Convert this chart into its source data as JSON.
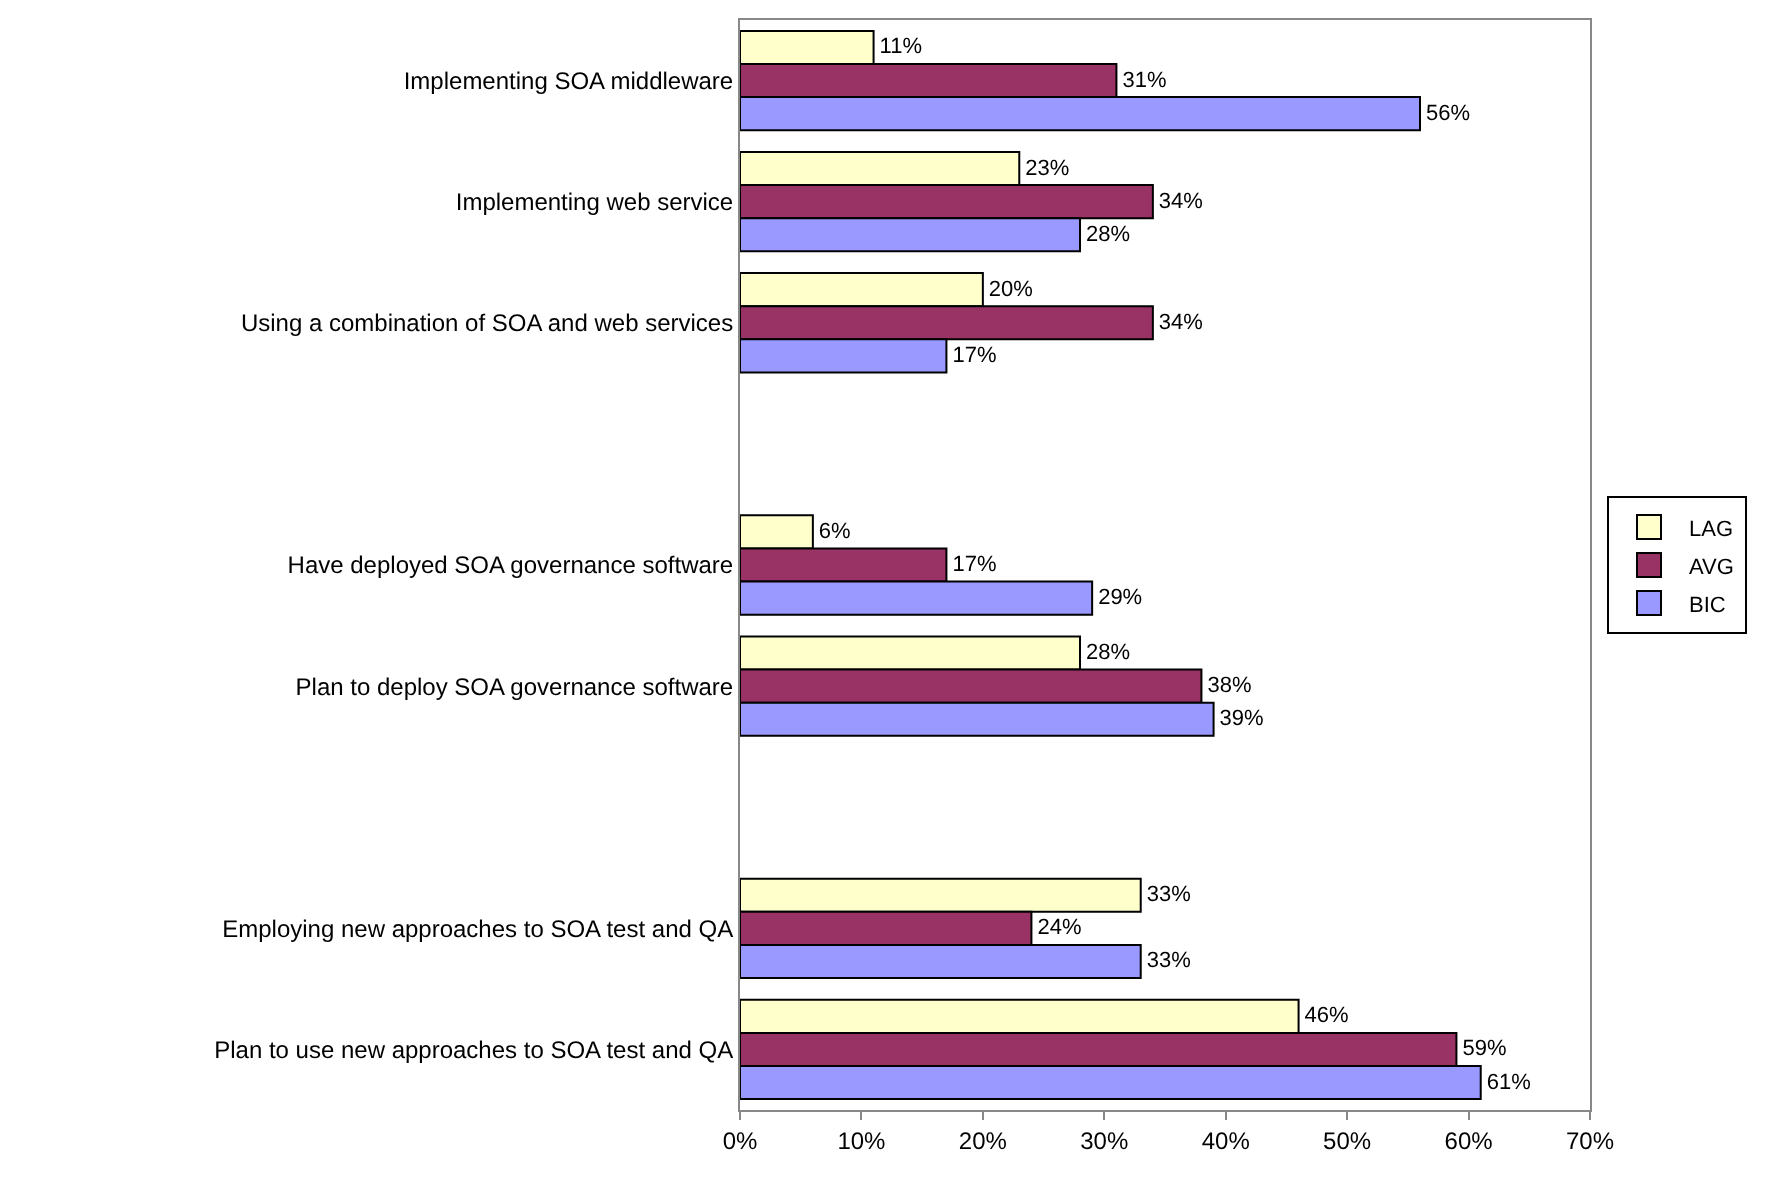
{
  "chart_data": {
    "type": "bar",
    "orientation": "horizontal",
    "categories": [
      "Implementing SOA middleware",
      "Implementing web service",
      "Using a combination of SOA and web services",
      null,
      "Have deployed SOA governance software",
      "Plan to deploy SOA governance software",
      null,
      "Employing new approaches to SOA test and QA",
      "Plan to use new approaches to SOA test and QA"
    ],
    "series": [
      {
        "name": "LAG",
        "color": "#ffffcc",
        "values": [
          11,
          23,
          20,
          null,
          6,
          28,
          null,
          33,
          46
        ],
        "value_labels": [
          "11%",
          "23%",
          "20%",
          null,
          "6%",
          "28%",
          null,
          "33%",
          "46%"
        ]
      },
      {
        "name": "AVG",
        "color": "#993366",
        "values": [
          31,
          34,
          34,
          null,
          17,
          38,
          null,
          24,
          59
        ],
        "value_labels": [
          "31%",
          "34%",
          "34%",
          null,
          "17%",
          "38%",
          null,
          "24%",
          "59%"
        ]
      },
      {
        "name": "BIC",
        "color": "#9999ff",
        "values": [
          56,
          28,
          17,
          null,
          29,
          39,
          null,
          33,
          61
        ],
        "value_labels": [
          "56%",
          "28%",
          "17%",
          null,
          "29%",
          "39%",
          null,
          "33%",
          "61%"
        ]
      }
    ],
    "xlim": [
      0,
      70
    ],
    "xticks": [
      {
        "value": 0,
        "label": "0%"
      },
      {
        "value": 10,
        "label": "10%"
      },
      {
        "value": 20,
        "label": "20%"
      },
      {
        "value": 30,
        "label": "30%"
      },
      {
        "value": 40,
        "label": "40%"
      },
      {
        "value": 50,
        "label": "50%"
      },
      {
        "value": 60,
        "label": "60%"
      },
      {
        "value": 70,
        "label": "70%"
      }
    ],
    "legend": "right",
    "grid": false
  }
}
